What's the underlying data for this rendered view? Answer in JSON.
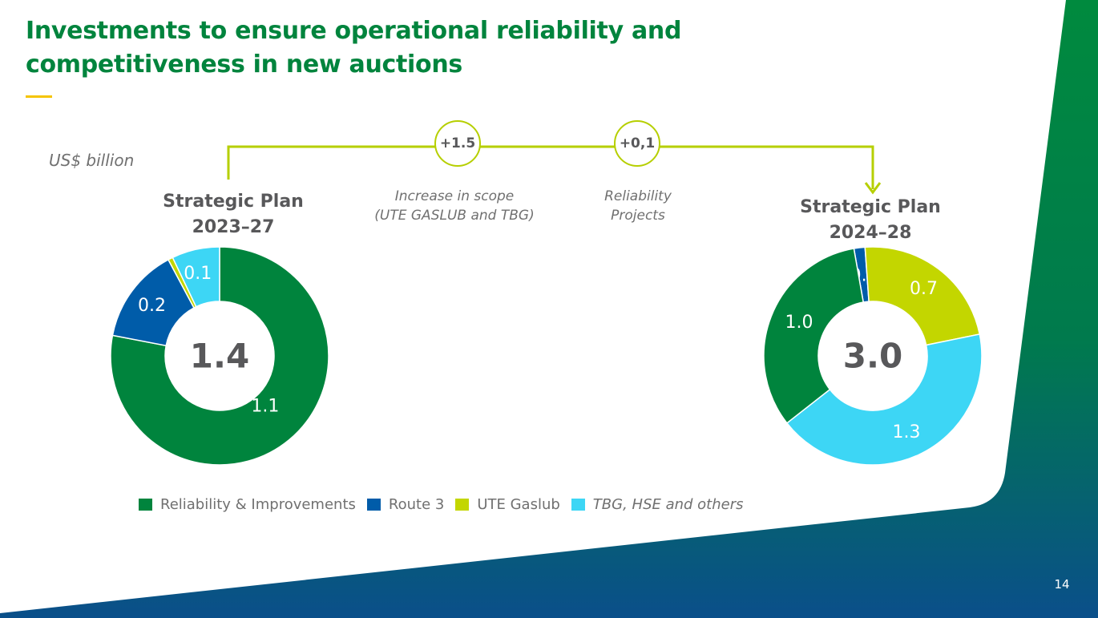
{
  "slide": {
    "title": "Investments to ensure operational reliability and competitiveness in new auctions",
    "unit": "US$ billion",
    "page_number": "14"
  },
  "plans": {
    "left": {
      "title_line1": "Strategic Plan",
      "title_line2": "2023–27"
    },
    "right": {
      "title_line1": "Strategic Plan",
      "title_line2": "2024–28"
    }
  },
  "bridge": {
    "step1": {
      "value": "+1.5",
      "label_line1": "Increase in scope",
      "label_line2": "(UTE GASLUB and TBG)"
    },
    "step2": {
      "value": "+0,1",
      "label_line1": "Reliability",
      "label_line2": "Projects"
    }
  },
  "colors": {
    "reliability": "#00843d",
    "route3": "#005ca9",
    "gaslub": "#c3d600",
    "tbg": "#3dd6f5",
    "bridge_line": "#b6cf00",
    "title": "#00843d"
  },
  "chart_data": [
    {
      "type": "pie",
      "title": "Strategic Plan 2023–27",
      "total_label": "1.4",
      "slices": [
        {
          "name": "Reliability & Improvements",
          "value": 1.1,
          "label": "1.1",
          "color": "#00843d"
        },
        {
          "name": "Route 3",
          "value": 0.2,
          "label": "0.2",
          "color": "#005ca9"
        },
        {
          "name": "UTE Gaslub",
          "value": 0.01,
          "label": "",
          "color": "#c3d600"
        },
        {
          "name": "TBG, HSE and others",
          "value": 0.1,
          "label": "0.1",
          "color": "#3dd6f5"
        }
      ]
    },
    {
      "type": "pie",
      "title": "Strategic Plan 2024–28",
      "total_label": "3.0",
      "slices": [
        {
          "name": "Route 3",
          "value": 0.05,
          "label": "0.1",
          "color": "#005ca9"
        },
        {
          "name": "UTE Gaslub",
          "value": 0.7,
          "label": "0.7",
          "color": "#c3d600"
        },
        {
          "name": "TBG, HSE and others",
          "value": 1.3,
          "label": "1.3",
          "color": "#3dd6f5"
        },
        {
          "name": "Reliability & Improvements",
          "value": 1.0,
          "label": "1.0",
          "color": "#00843d"
        }
      ]
    }
  ],
  "legend": [
    {
      "label": "Reliability & Improvements",
      "color": "#00843d",
      "italic": false
    },
    {
      "label": "Route 3",
      "color": "#005ca9",
      "italic": false
    },
    {
      "label": "UTE Gaslub",
      "color": "#c3d600",
      "italic": false
    },
    {
      "label": "TBG, HSE and others",
      "color": "#3dd6f5",
      "italic": true
    }
  ]
}
